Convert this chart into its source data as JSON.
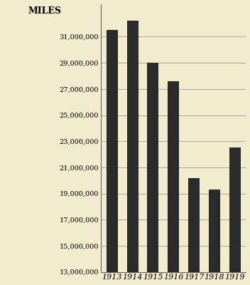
{
  "categories": [
    "1913",
    "1914",
    "1915",
    "1916",
    "1917",
    "1918",
    "1919"
  ],
  "values": [
    31500000,
    32200000,
    29000000,
    27600000,
    20200000,
    19300000,
    22500000
  ],
  "bar_color": "#2a2a2a",
  "background_color": "#f2ecce",
  "miles_label": "MILES",
  "ylim_min": 13000000,
  "ylim_max": 33500000,
  "ytick_values": [
    13000000,
    15000000,
    17000000,
    19000000,
    21000000,
    23000000,
    25000000,
    27000000,
    29000000,
    31000000
  ],
  "ytick_labels": [
    "13,000,000",
    "15,000,000",
    "17,000,000",
    "19,000,000",
    "21,000,000",
    "23,000,000",
    "25,000,000",
    "27,000,000",
    "29,000,000",
    "31,000,000"
  ],
  "grid_color": "#999999",
  "bar_width": 0.55,
  "label_fontsize": 8,
  "tick_fontsize": 7,
  "miles_fontsize": 9
}
